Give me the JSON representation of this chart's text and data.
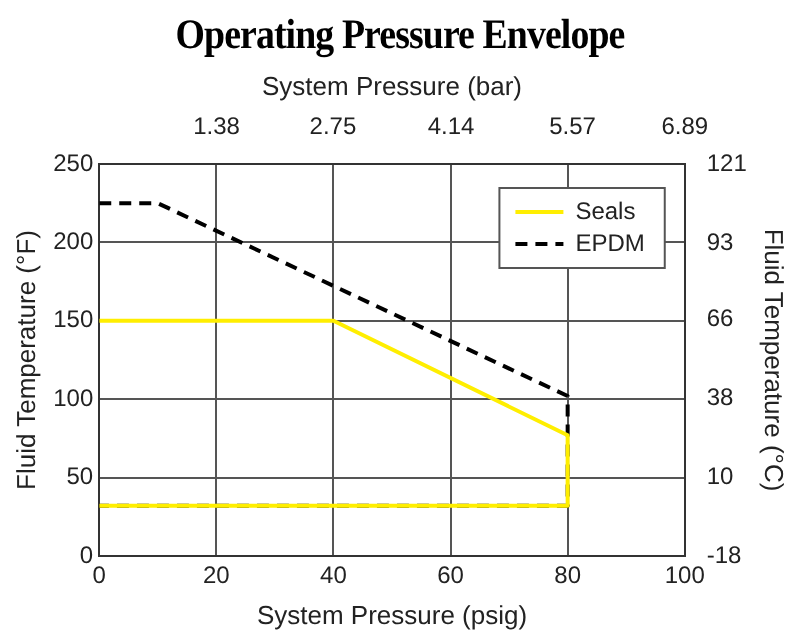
{
  "chart_data": {
    "type": "line",
    "title": "Operating Pressure Envelope",
    "xlabel": "System Pressure (psig)",
    "ylabel": "Fluid Temperature (°F)",
    "x2label": "System Pressure (bar)",
    "y2label": "Fluid Temperature (°C)",
    "xlim": [
      0,
      100
    ],
    "xticks": [
      0,
      20,
      40,
      60,
      80,
      100
    ],
    "ylim": [
      0,
      250
    ],
    "yticks": [
      0,
      50,
      100,
      150,
      200,
      250
    ],
    "x2lim": [
      0,
      6.89
    ],
    "x2ticks": [
      1.38,
      2.75,
      4.14,
      5.57,
      6.89
    ],
    "y2lim": [
      -18,
      121
    ],
    "y2ticks": [
      -18,
      10,
      38,
      66,
      93,
      121
    ],
    "grid": true,
    "legend": "top right",
    "marker": "none",
    "series": [
      {
        "name": "Seals",
        "color": "#ffee00",
        "line_style": "solid",
        "x": [
          0,
          40,
          80,
          80,
          0
        ],
        "values": [
          150,
          150,
          77,
          32,
          32
        ]
      },
      {
        "name": "EPDM",
        "color": "#000000",
        "line_style": "dashed",
        "x": [
          0,
          10,
          80,
          80,
          0
        ],
        "values": [
          225,
          225,
          102,
          32,
          32
        ]
      }
    ]
  }
}
